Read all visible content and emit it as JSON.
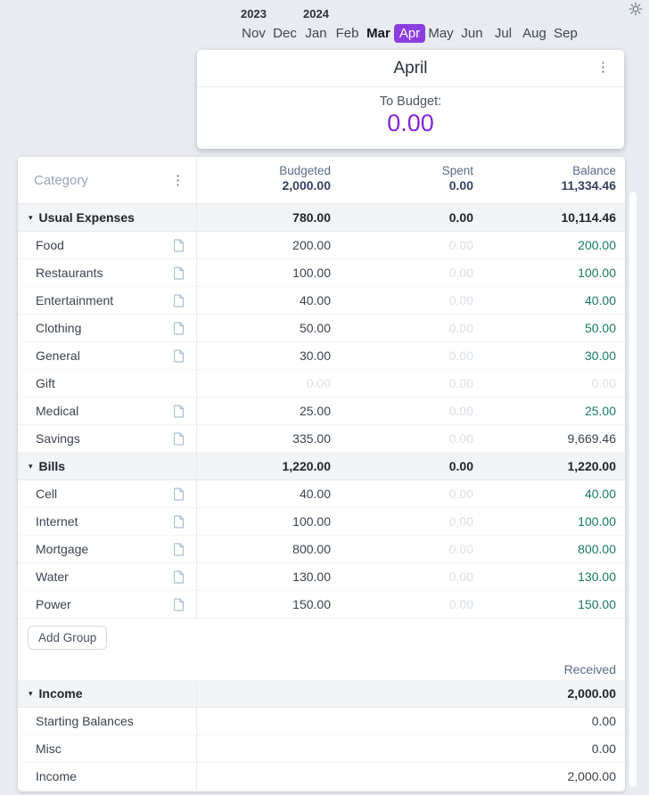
{
  "colors": {
    "accent_purple": "#8b3ede",
    "to_budget_purple": "#8826d4",
    "positive_green": "#187a61",
    "faded_gray": "#dbdfe4"
  },
  "icons": {
    "theme_toggle": "sun-icon",
    "card_menu": "kebab-icon",
    "header_menu": "kebab-icon",
    "category_note": "note-icon",
    "group_collapse": "triangle-down-icon"
  },
  "month_nav": {
    "years": [
      "2023",
      "2024"
    ],
    "months": [
      {
        "label": "Nov",
        "state": "normal"
      },
      {
        "label": "Dec",
        "state": "normal"
      },
      {
        "label": "Jan",
        "state": "normal"
      },
      {
        "label": "Feb",
        "state": "normal"
      },
      {
        "label": "Mar",
        "state": "bold"
      },
      {
        "label": "Apr",
        "state": "selected"
      },
      {
        "label": "May",
        "state": "normal"
      },
      {
        "label": "Jun",
        "state": "normal"
      },
      {
        "label": "Jul",
        "state": "normal"
      },
      {
        "label": "Aug",
        "state": "normal"
      },
      {
        "label": "Sep",
        "state": "normal"
      }
    ]
  },
  "summary_card": {
    "title": "April",
    "to_budget_label": "To Budget:",
    "to_budget_value": "0.00"
  },
  "budget_table": {
    "header": {
      "category_label": "Category",
      "columns": [
        {
          "label": "Budgeted",
          "total": "2,000.00"
        },
        {
          "label": "Spent",
          "total": "0.00"
        },
        {
          "label": "Balance",
          "total": "11,334.46"
        }
      ]
    },
    "groups": [
      {
        "name": "Usual Expenses",
        "budgeted": "780.00",
        "spent": "0.00",
        "balance": "10,114.46",
        "rows": [
          {
            "name": "Food",
            "has_icon": true,
            "budgeted": "200.00",
            "budgeted_faded": false,
            "spent": "0.00",
            "balance": "200.00",
            "balance_color": "green"
          },
          {
            "name": "Restaurants",
            "has_icon": true,
            "budgeted": "100.00",
            "budgeted_faded": false,
            "spent": "0.00",
            "balance": "100.00",
            "balance_color": "green"
          },
          {
            "name": "Entertainment",
            "has_icon": true,
            "budgeted": "40.00",
            "budgeted_faded": false,
            "spent": "0.00",
            "balance": "40.00",
            "balance_color": "green"
          },
          {
            "name": "Clothing",
            "has_icon": true,
            "budgeted": "50.00",
            "budgeted_faded": false,
            "spent": "0.00",
            "balance": "50.00",
            "balance_color": "green"
          },
          {
            "name": "General",
            "has_icon": true,
            "budgeted": "30.00",
            "budgeted_faded": false,
            "spent": "0.00",
            "balance": "30.00",
            "balance_color": "green"
          },
          {
            "name": "Gift",
            "has_icon": false,
            "budgeted": "0.00",
            "budgeted_faded": true,
            "spent": "0.00",
            "balance": "0.00",
            "balance_color": "faded"
          },
          {
            "name": "Medical",
            "has_icon": true,
            "budgeted": "25.00",
            "budgeted_faded": false,
            "spent": "0.00",
            "balance": "25.00",
            "balance_color": "green"
          },
          {
            "name": "Savings",
            "has_icon": true,
            "budgeted": "335.00",
            "budgeted_faded": false,
            "spent": "0.00",
            "balance": "9,669.46",
            "balance_color": "dark"
          }
        ]
      },
      {
        "name": "Bills",
        "budgeted": "1,220.00",
        "spent": "0.00",
        "balance": "1,220.00",
        "rows": [
          {
            "name": "Cell",
            "has_icon": true,
            "budgeted": "40.00",
            "budgeted_faded": false,
            "spent": "0.00",
            "balance": "40.00",
            "balance_color": "green"
          },
          {
            "name": "Internet",
            "has_icon": true,
            "budgeted": "100.00",
            "budgeted_faded": false,
            "spent": "0.00",
            "balance": "100.00",
            "balance_color": "green"
          },
          {
            "name": "Mortgage",
            "has_icon": true,
            "budgeted": "800.00",
            "budgeted_faded": false,
            "spent": "0.00",
            "balance": "800.00",
            "balance_color": "green"
          },
          {
            "name": "Water",
            "has_icon": true,
            "budgeted": "130.00",
            "budgeted_faded": false,
            "spent": "0.00",
            "balance": "130.00",
            "balance_color": "green"
          },
          {
            "name": "Power",
            "has_icon": true,
            "budgeted": "150.00",
            "budgeted_faded": false,
            "spent": "0.00",
            "balance": "150.00",
            "balance_color": "green"
          }
        ]
      }
    ],
    "add_group_label": "Add Group",
    "received_label": "Received",
    "income_group": {
      "name": "Income",
      "received": "2,000.00",
      "rows": [
        {
          "name": "Starting Balances",
          "value": "0.00"
        },
        {
          "name": "Misc",
          "value": "0.00"
        },
        {
          "name": "Income",
          "value": "2,000.00"
        }
      ]
    }
  }
}
